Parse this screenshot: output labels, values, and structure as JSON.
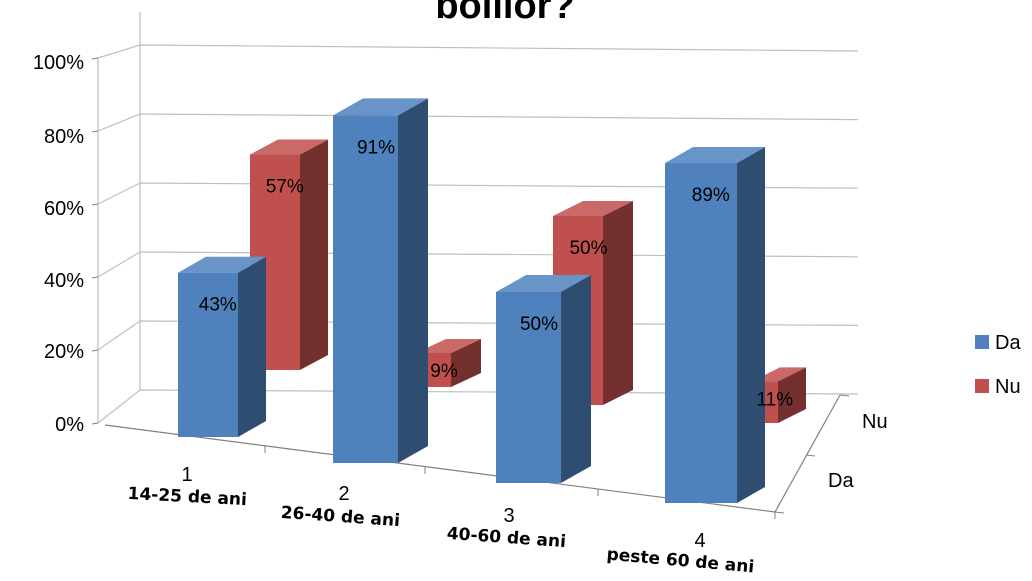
{
  "chart_data": {
    "type": "bar",
    "title": "bolilor?",
    "categories": [
      {
        "number": "1",
        "label": "14-25 de ani"
      },
      {
        "number": "2",
        "label": "26-40 de ani"
      },
      {
        "number": "3",
        "label": "40-60 de ani"
      },
      {
        "number": "4",
        "label": "peste 60 de ani"
      }
    ],
    "series": [
      {
        "name": "Da",
        "color": "#4F81BD",
        "values": [
          43,
          91,
          50,
          89
        ],
        "labels": [
          "43%",
          "91%",
          "50%",
          "89%"
        ]
      },
      {
        "name": "Nu",
        "color": "#C0504D",
        "values": [
          57,
          9,
          50,
          11
        ],
        "labels": [
          "57%",
          "9%",
          "50%",
          "11%"
        ]
      }
    ],
    "y_ticks": [
      "0%",
      "20%",
      "40%",
      "60%",
      "80%",
      "100%"
    ],
    "ylim": [
      0,
      100
    ],
    "depth_axis": [
      "Nu",
      "Da"
    ],
    "legend": {
      "position": "right",
      "items": [
        "Da",
        "Nu"
      ]
    },
    "grid": true
  }
}
